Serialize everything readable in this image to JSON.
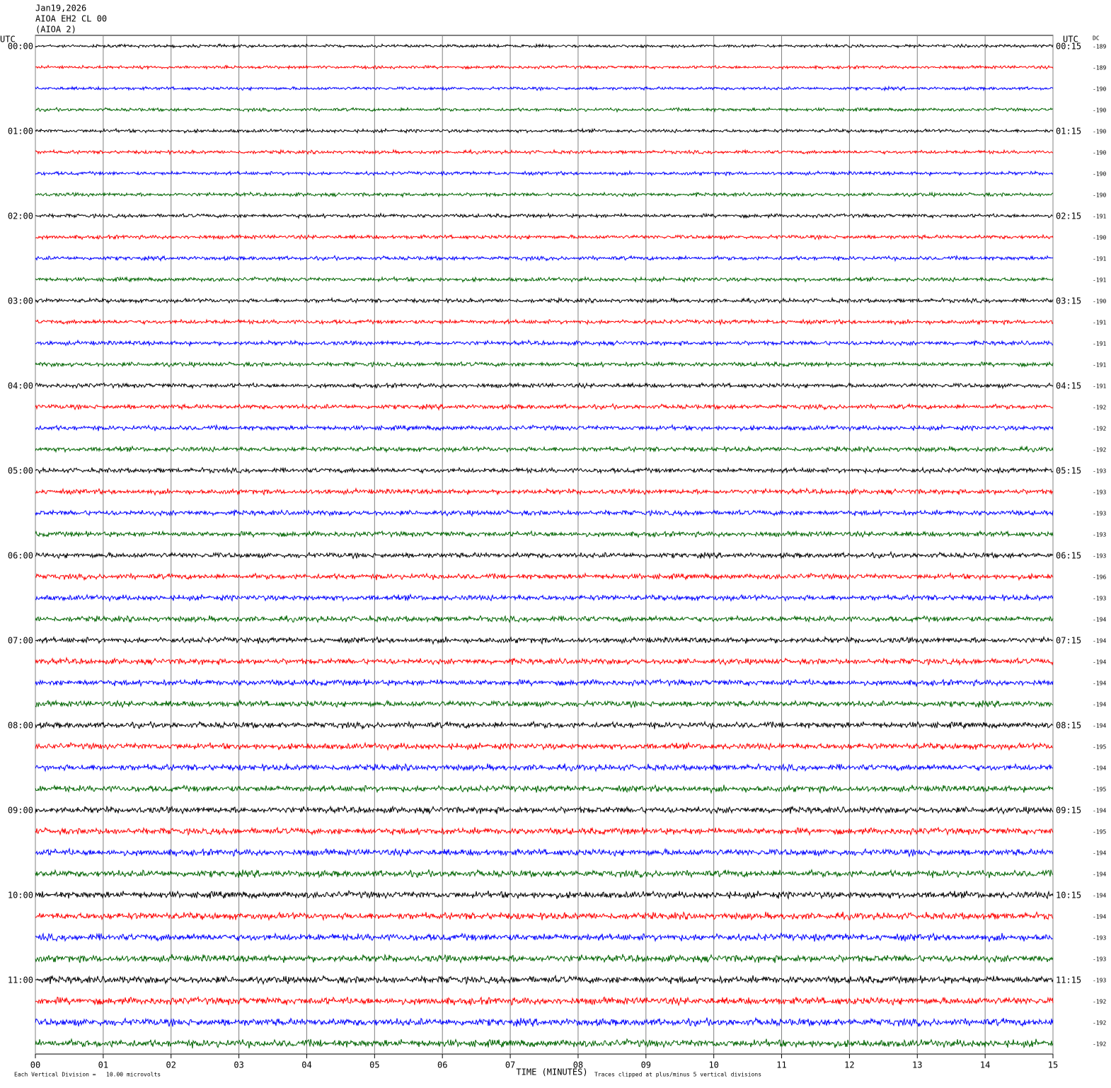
{
  "header": {
    "date": "Jan19,2026",
    "channel": "AIOA EH2 CL 00",
    "station": "(AIOA 2)"
  },
  "utc_label": "UTC",
  "dc_label": "DC",
  "left_labels": [
    "00:00",
    "01:00",
    "02:00",
    "03:00",
    "04:00",
    "05:00",
    "06:00",
    "07:00",
    "08:00",
    "09:00",
    "10:00",
    "11:00"
  ],
  "right_labels": [
    "00:15",
    "01:15",
    "02:15",
    "03:15",
    "04:15",
    "05:15",
    "06:15",
    "07:15",
    "08:15",
    "09:15",
    "10:15",
    "11:15"
  ],
  "dc_values": [
    -189,
    -189,
    -190,
    -190,
    -190,
    -190,
    -190,
    -190,
    -191,
    -190,
    -191,
    -191,
    -190,
    -191,
    -191,
    -191,
    -191,
    -192,
    -192,
    -192,
    -193,
    -193,
    -193,
    -193,
    -193,
    -196,
    -193,
    -194,
    -194,
    -194,
    -194,
    -194,
    -194,
    -195,
    -194,
    -195,
    -194,
    -195,
    -194,
    -194,
    -194,
    -194,
    -193,
    -193,
    -193,
    -192,
    -192,
    -192
  ],
  "trace_colors": [
    "#000000",
    "#ff0000",
    "#0000ff",
    "#006400"
  ],
  "xaxis": {
    "label": "TIME (MINUTES)",
    "xlim": [
      0,
      15
    ],
    "xticks": [
      {
        "value": 0,
        "label": "00"
      },
      {
        "value": 1,
        "label": "01"
      },
      {
        "value": 2,
        "label": "02"
      },
      {
        "value": 3,
        "label": "03"
      },
      {
        "value": 4,
        "label": "04"
      },
      {
        "value": 5,
        "label": "05"
      },
      {
        "value": 6,
        "label": "06"
      },
      {
        "value": 7,
        "label": "07"
      },
      {
        "value": 8,
        "label": "08"
      },
      {
        "value": 9,
        "label": "09"
      },
      {
        "value": 10,
        "label": "10"
      },
      11,
      12,
      13,
      14,
      15
    ]
  },
  "footer": {
    "scale": "Each Vertical Division =   10.00 microvolts",
    "clip": "Traces clipped at plus/minus 5 vertical divisions"
  }
}
